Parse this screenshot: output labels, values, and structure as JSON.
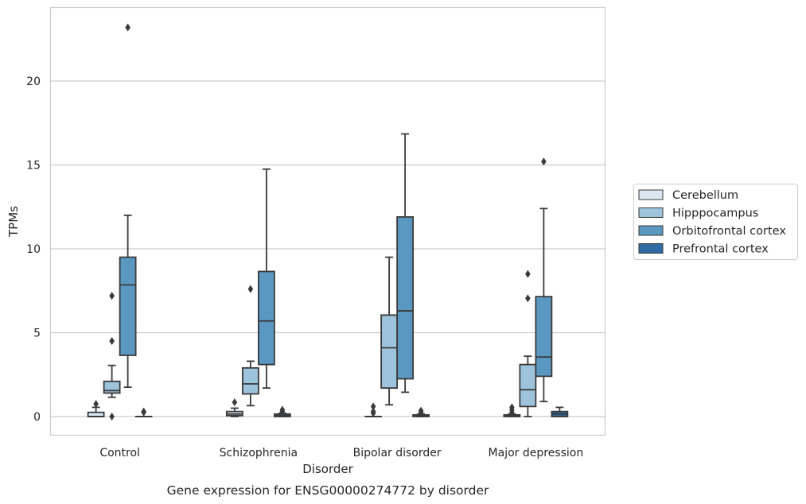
{
  "caption": "Gene expression for ENSG00000274772 by disorder",
  "chart_data": {
    "type": "box",
    "title": "",
    "xlabel": "Disorder",
    "ylabel": "TPMs",
    "ylim": [
      -1.1,
      24.6
    ],
    "yticks": [
      0,
      5,
      10,
      15,
      20
    ],
    "grid": "horizontal",
    "legend_position": "right",
    "categories": [
      "Control",
      "Schizophrenia",
      "Bipolar disorder",
      "Major depression"
    ],
    "series": [
      {
        "name": "Cerebellum",
        "color": "#dbe8f4",
        "boxes": [
          {
            "whislo": 0.0,
            "q1": 0.0,
            "med": 0.0,
            "q3": 0.25,
            "whishi": 0.55,
            "fliers": [
              0.75
            ]
          },
          {
            "whislo": 0.0,
            "q1": 0.05,
            "med": 0.15,
            "q3": 0.3,
            "whishi": 0.5,
            "fliers": [
              0.85
            ]
          },
          {
            "whislo": 0.0,
            "q1": 0.0,
            "med": 0.0,
            "q3": 0.0,
            "whishi": 0.0,
            "fliers": [
              0.2,
              0.3,
              0.6
            ]
          },
          {
            "whislo": 0.0,
            "q1": 0.0,
            "med": 0.05,
            "q3": 0.1,
            "whishi": 0.15,
            "fliers": [
              0.25,
              0.4,
              0.55
            ]
          }
        ]
      },
      {
        "name": "Hipppocampus",
        "color": "#9ec3dc",
        "boxes": [
          {
            "whislo": 1.15,
            "q1": 1.4,
            "med": 1.55,
            "q3": 2.1,
            "whishi": 3.05,
            "fliers": [
              4.5,
              7.2,
              0.0
            ]
          },
          {
            "whislo": 0.65,
            "q1": 1.35,
            "med": 1.95,
            "q3": 2.9,
            "whishi": 3.3,
            "fliers": [
              7.6
            ]
          },
          {
            "whislo": 0.7,
            "q1": 1.7,
            "med": 4.1,
            "q3": 6.05,
            "whishi": 9.5,
            "fliers": []
          },
          {
            "whislo": 0.0,
            "q1": 0.6,
            "med": 1.6,
            "q3": 3.1,
            "whishi": 3.6,
            "fliers": [
              7.05,
              8.5
            ]
          }
        ]
      },
      {
        "name": "Orbitofrontal cortex",
        "color": "#5a98c2",
        "boxes": [
          {
            "whislo": 1.75,
            "q1": 3.65,
            "med": 7.85,
            "q3": 9.5,
            "whishi": 12.0,
            "fliers": [
              23.2
            ]
          },
          {
            "whislo": 1.7,
            "q1": 3.1,
            "med": 5.7,
            "q3": 8.65,
            "whishi": 14.75,
            "fliers": []
          },
          {
            "whislo": 1.45,
            "q1": 2.25,
            "med": 6.3,
            "q3": 11.9,
            "whishi": 16.85,
            "fliers": []
          },
          {
            "whislo": 0.9,
            "q1": 2.4,
            "med": 3.55,
            "q3": 7.15,
            "whishi": 12.4,
            "fliers": [
              15.2
            ]
          }
        ]
      },
      {
        "name": "Prefrontal cortex",
        "color": "#2f6aa3",
        "boxes": [
          {
            "whislo": 0.0,
            "q1": 0.0,
            "med": 0.0,
            "q3": 0.0,
            "whishi": 0.0,
            "fliers": [
              0.25,
              0.3
            ]
          },
          {
            "whislo": 0.0,
            "q1": 0.0,
            "med": 0.05,
            "q3": 0.15,
            "whishi": 0.2,
            "fliers": [
              0.3,
              0.4
            ]
          },
          {
            "whislo": 0.0,
            "q1": 0.0,
            "med": 0.05,
            "q3": 0.1,
            "whishi": 0.15,
            "fliers": [
              0.25,
              0.35
            ]
          },
          {
            "whislo": 0.0,
            "q1": 0.0,
            "med": 0.15,
            "q3": 0.3,
            "whishi": 0.55,
            "fliers": []
          }
        ]
      }
    ]
  }
}
